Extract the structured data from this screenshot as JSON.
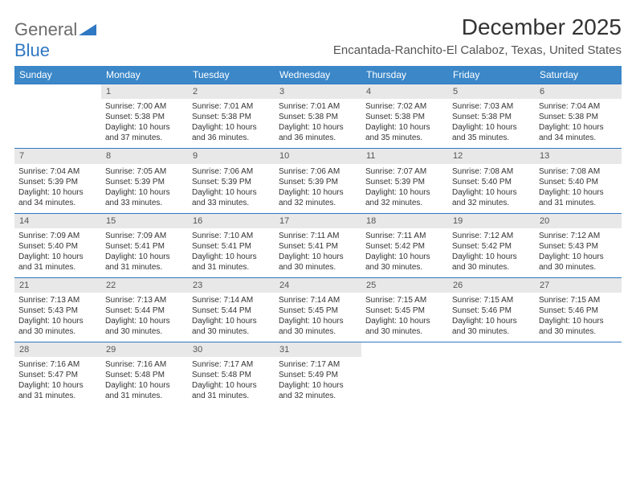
{
  "logo": {
    "word1": "General",
    "word2": "Blue"
  },
  "title": "December 2025",
  "location": "Encantada-Ranchito-El Calaboz, Texas, United States",
  "colors": {
    "header_bg": "#3b87c8",
    "header_text": "#ffffff",
    "daynum_bg": "#e8e8e8",
    "separator": "#2f78c3",
    "title_color": "#333333",
    "location_color": "#555555",
    "cell_text": "#333333",
    "background": "#ffffff",
    "logo_gray": "#6b6b6b",
    "logo_blue": "#2f78c3"
  },
  "typography": {
    "title_fontsize": 28,
    "location_fontsize": 15,
    "header_fontsize": 12,
    "daynum_fontsize": 11,
    "cell_fontsize": 10
  },
  "weekdays": [
    "Sunday",
    "Monday",
    "Tuesday",
    "Wednesday",
    "Thursday",
    "Friday",
    "Saturday"
  ],
  "weeks": [
    {
      "nums": [
        "",
        "1",
        "2",
        "3",
        "4",
        "5",
        "6"
      ],
      "cells": [
        {
          "lines": []
        },
        {
          "lines": [
            "Sunrise: 7:00 AM",
            "Sunset: 5:38 PM",
            "Daylight: 10 hours",
            "and 37 minutes."
          ]
        },
        {
          "lines": [
            "Sunrise: 7:01 AM",
            "Sunset: 5:38 PM",
            "Daylight: 10 hours",
            "and 36 minutes."
          ]
        },
        {
          "lines": [
            "Sunrise: 7:01 AM",
            "Sunset: 5:38 PM",
            "Daylight: 10 hours",
            "and 36 minutes."
          ]
        },
        {
          "lines": [
            "Sunrise: 7:02 AM",
            "Sunset: 5:38 PM",
            "Daylight: 10 hours",
            "and 35 minutes."
          ]
        },
        {
          "lines": [
            "Sunrise: 7:03 AM",
            "Sunset: 5:38 PM",
            "Daylight: 10 hours",
            "and 35 minutes."
          ]
        },
        {
          "lines": [
            "Sunrise: 7:04 AM",
            "Sunset: 5:38 PM",
            "Daylight: 10 hours",
            "and 34 minutes."
          ]
        }
      ]
    },
    {
      "nums": [
        "7",
        "8",
        "9",
        "10",
        "11",
        "12",
        "13"
      ],
      "cells": [
        {
          "lines": [
            "Sunrise: 7:04 AM",
            "Sunset: 5:39 PM",
            "Daylight: 10 hours",
            "and 34 minutes."
          ]
        },
        {
          "lines": [
            "Sunrise: 7:05 AM",
            "Sunset: 5:39 PM",
            "Daylight: 10 hours",
            "and 33 minutes."
          ]
        },
        {
          "lines": [
            "Sunrise: 7:06 AM",
            "Sunset: 5:39 PM",
            "Daylight: 10 hours",
            "and 33 minutes."
          ]
        },
        {
          "lines": [
            "Sunrise: 7:06 AM",
            "Sunset: 5:39 PM",
            "Daylight: 10 hours",
            "and 32 minutes."
          ]
        },
        {
          "lines": [
            "Sunrise: 7:07 AM",
            "Sunset: 5:39 PM",
            "Daylight: 10 hours",
            "and 32 minutes."
          ]
        },
        {
          "lines": [
            "Sunrise: 7:08 AM",
            "Sunset: 5:40 PM",
            "Daylight: 10 hours",
            "and 32 minutes."
          ]
        },
        {
          "lines": [
            "Sunrise: 7:08 AM",
            "Sunset: 5:40 PM",
            "Daylight: 10 hours",
            "and 31 minutes."
          ]
        }
      ]
    },
    {
      "nums": [
        "14",
        "15",
        "16",
        "17",
        "18",
        "19",
        "20"
      ],
      "cells": [
        {
          "lines": [
            "Sunrise: 7:09 AM",
            "Sunset: 5:40 PM",
            "Daylight: 10 hours",
            "and 31 minutes."
          ]
        },
        {
          "lines": [
            "Sunrise: 7:09 AM",
            "Sunset: 5:41 PM",
            "Daylight: 10 hours",
            "and 31 minutes."
          ]
        },
        {
          "lines": [
            "Sunrise: 7:10 AM",
            "Sunset: 5:41 PM",
            "Daylight: 10 hours",
            "and 31 minutes."
          ]
        },
        {
          "lines": [
            "Sunrise: 7:11 AM",
            "Sunset: 5:41 PM",
            "Daylight: 10 hours",
            "and 30 minutes."
          ]
        },
        {
          "lines": [
            "Sunrise: 7:11 AM",
            "Sunset: 5:42 PM",
            "Daylight: 10 hours",
            "and 30 minutes."
          ]
        },
        {
          "lines": [
            "Sunrise: 7:12 AM",
            "Sunset: 5:42 PM",
            "Daylight: 10 hours",
            "and 30 minutes."
          ]
        },
        {
          "lines": [
            "Sunrise: 7:12 AM",
            "Sunset: 5:43 PM",
            "Daylight: 10 hours",
            "and 30 minutes."
          ]
        }
      ]
    },
    {
      "nums": [
        "21",
        "22",
        "23",
        "24",
        "25",
        "26",
        "27"
      ],
      "cells": [
        {
          "lines": [
            "Sunrise: 7:13 AM",
            "Sunset: 5:43 PM",
            "Daylight: 10 hours",
            "and 30 minutes."
          ]
        },
        {
          "lines": [
            "Sunrise: 7:13 AM",
            "Sunset: 5:44 PM",
            "Daylight: 10 hours",
            "and 30 minutes."
          ]
        },
        {
          "lines": [
            "Sunrise: 7:14 AM",
            "Sunset: 5:44 PM",
            "Daylight: 10 hours",
            "and 30 minutes."
          ]
        },
        {
          "lines": [
            "Sunrise: 7:14 AM",
            "Sunset: 5:45 PM",
            "Daylight: 10 hours",
            "and 30 minutes."
          ]
        },
        {
          "lines": [
            "Sunrise: 7:15 AM",
            "Sunset: 5:45 PM",
            "Daylight: 10 hours",
            "and 30 minutes."
          ]
        },
        {
          "lines": [
            "Sunrise: 7:15 AM",
            "Sunset: 5:46 PM",
            "Daylight: 10 hours",
            "and 30 minutes."
          ]
        },
        {
          "lines": [
            "Sunrise: 7:15 AM",
            "Sunset: 5:46 PM",
            "Daylight: 10 hours",
            "and 30 minutes."
          ]
        }
      ]
    },
    {
      "nums": [
        "28",
        "29",
        "30",
        "31",
        "",
        "",
        ""
      ],
      "cells": [
        {
          "lines": [
            "Sunrise: 7:16 AM",
            "Sunset: 5:47 PM",
            "Daylight: 10 hours",
            "and 31 minutes."
          ]
        },
        {
          "lines": [
            "Sunrise: 7:16 AM",
            "Sunset: 5:48 PM",
            "Daylight: 10 hours",
            "and 31 minutes."
          ]
        },
        {
          "lines": [
            "Sunrise: 7:17 AM",
            "Sunset: 5:48 PM",
            "Daylight: 10 hours",
            "and 31 minutes."
          ]
        },
        {
          "lines": [
            "Sunrise: 7:17 AM",
            "Sunset: 5:49 PM",
            "Daylight: 10 hours",
            "and 32 minutes."
          ]
        },
        {
          "lines": []
        },
        {
          "lines": []
        },
        {
          "lines": []
        }
      ]
    }
  ]
}
